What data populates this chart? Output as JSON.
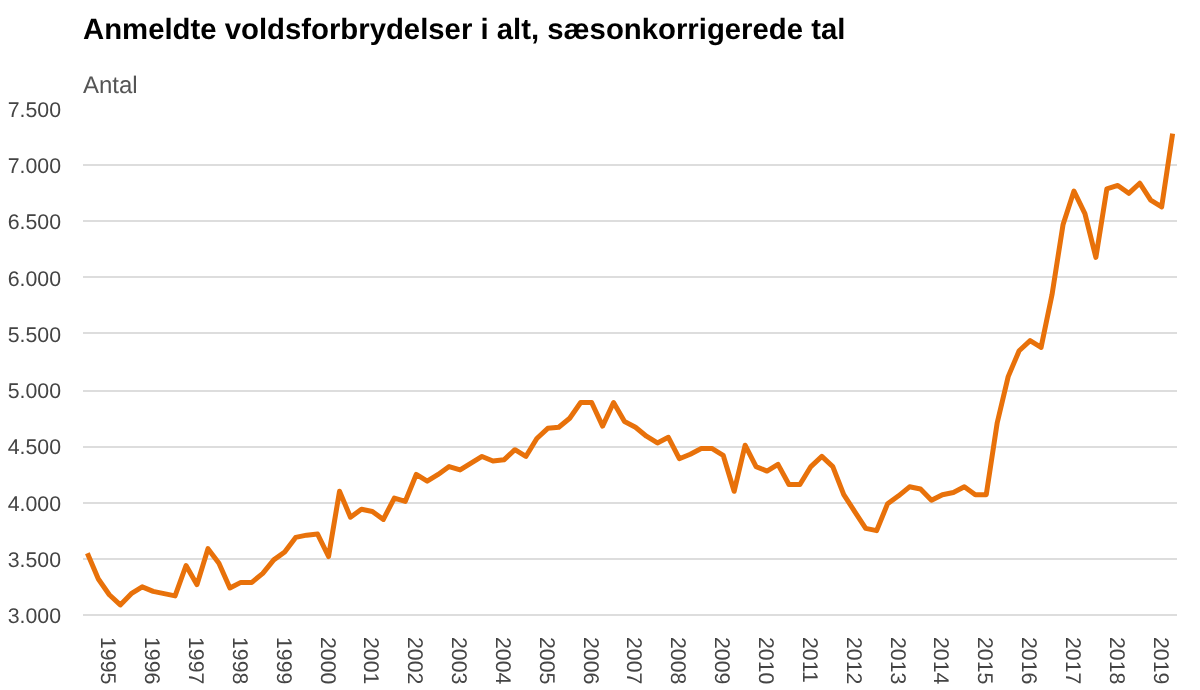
{
  "chart_data": {
    "type": "line",
    "title": "Anmeldte voldsforbrydelser i alt, sæsonkorrigerede tal",
    "ylabel": "Antal",
    "series": [
      {
        "color": "#e8710a",
        "values": [
          3550,
          3320,
          3180,
          3090,
          3190,
          3250,
          3210,
          3190,
          3170,
          3440,
          3270,
          3590,
          3460,
          3240,
          3290,
          3290,
          3370,
          3490,
          3560,
          3690,
          3710,
          3720,
          3520,
          4100,
          3870,
          3940,
          3920,
          3850,
          4040,
          4010,
          4250,
          4190,
          4250,
          4320,
          4290,
          4350,
          4410,
          4370,
          4380,
          4470,
          4410,
          4570,
          4660,
          4670,
          4750,
          4890,
          4890,
          4680,
          4890,
          4720,
          4670,
          4590,
          4530,
          4580,
          4390,
          4430,
          4480,
          4480,
          4420,
          4100,
          4510,
          4320,
          4280,
          4340,
          4160,
          4160,
          4320,
          4410,
          4320,
          4070,
          3920,
          3770,
          3750,
          3990,
          4060,
          4140,
          4120,
          4020,
          4070,
          4090,
          4140,
          4070,
          4070,
          4710,
          5120,
          5350,
          5440,
          5380,
          5850,
          6470,
          6770,
          6570,
          6180,
          6790,
          6820,
          6750,
          6840,
          6690,
          6630,
          7280
        ]
      }
    ],
    "x": [
      1995.0,
      1995.25,
      1995.5,
      1995.75,
      1996.0,
      1996.25,
      1996.5,
      1996.75,
      1997.0,
      1997.25,
      1997.5,
      1997.75,
      1998.0,
      1998.25,
      1998.5,
      1998.75,
      1999.0,
      1999.25,
      1999.5,
      1999.75,
      2000.0,
      2000.25,
      2000.5,
      2000.75,
      2001.0,
      2001.25,
      2001.5,
      2001.75,
      2002.0,
      2002.25,
      2002.5,
      2002.75,
      2003.0,
      2003.25,
      2003.5,
      2003.75,
      2004.0,
      2004.25,
      2004.5,
      2004.75,
      2005.0,
      2005.25,
      2005.5,
      2005.75,
      2006.0,
      2006.25,
      2006.5,
      2006.75,
      2007.0,
      2007.25,
      2007.5,
      2007.75,
      2008.0,
      2008.25,
      2008.5,
      2008.75,
      2009.0,
      2009.25,
      2009.5,
      2009.75,
      2010.0,
      2010.25,
      2010.5,
      2010.75,
      2011.0,
      2011.25,
      2011.5,
      2011.75,
      2012.0,
      2012.25,
      2012.5,
      2012.75,
      2013.0,
      2013.25,
      2013.5,
      2013.75,
      2014.0,
      2014.25,
      2014.5,
      2014.75,
      2015.0,
      2015.25,
      2015.5,
      2015.75,
      2016.0,
      2016.25,
      2016.5,
      2016.75,
      2017.0,
      2017.25,
      2017.5,
      2017.75,
      2018.0,
      2018.25,
      2018.5,
      2018.75,
      2019.0,
      2019.25,
      2019.5,
      2019.75
    ],
    "xlim": [
      1994.9,
      2019.85
    ],
    "xticks": [
      {
        "value": 1995.5,
        "label": "1995"
      },
      {
        "value": 1996.5,
        "label": "1996"
      },
      {
        "value": 1997.5,
        "label": "1997"
      },
      {
        "value": 1998.5,
        "label": "1998"
      },
      {
        "value": 1999.5,
        "label": "1999"
      },
      {
        "value": 2000.5,
        "label": "2000"
      },
      {
        "value": 2001.5,
        "label": "2001"
      },
      {
        "value": 2002.5,
        "label": "2002"
      },
      {
        "value": 2003.5,
        "label": "2003"
      },
      {
        "value": 2004.5,
        "label": "2004"
      },
      {
        "value": 2005.5,
        "label": "2005"
      },
      {
        "value": 2006.5,
        "label": "2006"
      },
      {
        "value": 2007.5,
        "label": "2007"
      },
      {
        "value": 2008.5,
        "label": "2008"
      },
      {
        "value": 2009.5,
        "label": "2009"
      },
      {
        "value": 2010.5,
        "label": "2010"
      },
      {
        "value": 2011.5,
        "label": "2011"
      },
      {
        "value": 2012.5,
        "label": "2012"
      },
      {
        "value": 2013.5,
        "label": "2013"
      },
      {
        "value": 2014.5,
        "label": "2014"
      },
      {
        "value": 2015.5,
        "label": "2015"
      },
      {
        "value": 2016.5,
        "label": "2016"
      },
      {
        "value": 2017.5,
        "label": "2017"
      },
      {
        "value": 2018.5,
        "label": "2018"
      },
      {
        "value": 2019.5,
        "label": "2019"
      }
    ],
    "ylim": [
      3000,
      7500
    ],
    "yticks": [
      {
        "value": 3000,
        "label": "3.000"
      },
      {
        "value": 3500,
        "label": "3.500"
      },
      {
        "value": 4000,
        "label": "4.000"
      },
      {
        "value": 4500,
        "label": "4.500"
      },
      {
        "value": 5000,
        "label": "5.000"
      },
      {
        "value": 5500,
        "label": "5.500"
      },
      {
        "value": 6000,
        "label": "6.000"
      },
      {
        "value": 6500,
        "label": "6.500"
      },
      {
        "value": 7000,
        "label": "7.000"
      },
      {
        "value": 7500,
        "label": "7.500"
      }
    ],
    "grid": "y",
    "line_style": "solid"
  }
}
